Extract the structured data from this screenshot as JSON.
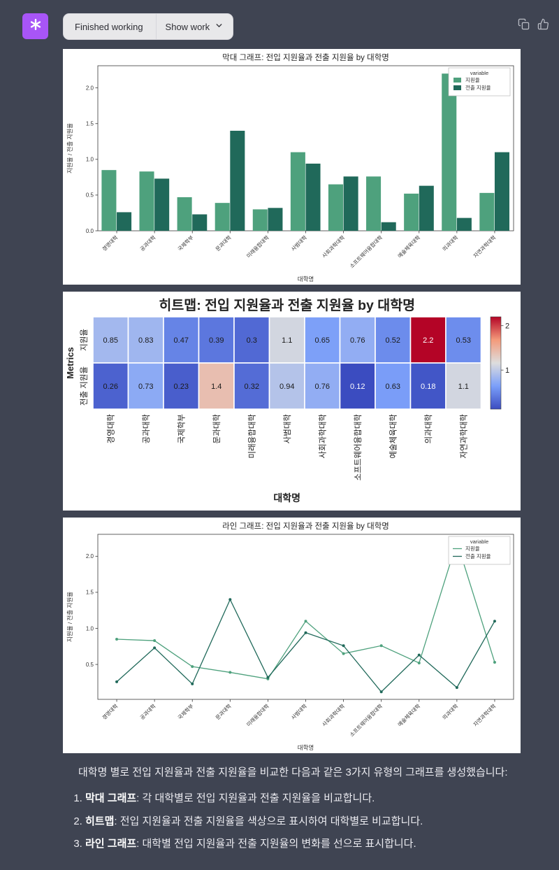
{
  "header": {
    "status_label": "Finished working",
    "show_work_label": "Show work",
    "avatar_color": "#a855f7",
    "icons": [
      "openai-logo-icon",
      "chevron-down-icon",
      "copy-icon",
      "thumbs-up-icon"
    ]
  },
  "page": {
    "background": "#3f4452",
    "panel_background": "#ffffff",
    "text_color": "#ececf1"
  },
  "chart_data": [
    {
      "type": "bar",
      "title": "막대 그래프: 전입 지원율과 전출 지원율 by 대학명",
      "xlabel": "대학명",
      "ylabel": "지원율 / 전출 지원율",
      "legend_title": "variable",
      "legend_position": "top-right",
      "grid": false,
      "ylim": [
        0,
        2.31
      ],
      "yticks": [
        0.0,
        0.5,
        1.0,
        1.5,
        2.0
      ],
      "categories": [
        "경영대학",
        "공과대학",
        "국제학부",
        "문과대학",
        "미래융합대학",
        "사범대학",
        "사회과학대학",
        "소프트웨어융합대학",
        "예술체육대학",
        "의과대학",
        "자연과학대학"
      ],
      "series": [
        {
          "name": "지원율",
          "color": "#4ea17d",
          "values": [
            0.85,
            0.83,
            0.47,
            0.39,
            0.3,
            1.1,
            0.65,
            0.76,
            0.52,
            2.2,
            0.53
          ]
        },
        {
          "name": "전출 지원율",
          "color": "#20695a",
          "values": [
            0.26,
            0.73,
            0.23,
            1.4,
            0.32,
            0.94,
            0.76,
            0.12,
            0.63,
            0.18,
            1.1
          ]
        }
      ]
    },
    {
      "type": "heatmap",
      "title": "히트맵: 전입 지원율과 전출 지원율 by 대학명",
      "xlabel": "대학명",
      "ylabel": "Metrics",
      "categories": [
        "경영대학",
        "공과대학",
        "국제학부",
        "문과대학",
        "미래융합대학",
        "사범대학",
        "사회과학대학",
        "소프트웨어융합대학",
        "예술체육대학",
        "의과대학",
        "자연과학대학"
      ],
      "rows": [
        {
          "name": "지원율",
          "values": [
            0.85,
            0.83,
            0.47,
            0.39,
            0.3,
            1.1,
            0.65,
            0.76,
            0.52,
            2.2,
            0.53
          ],
          "labels": [
            "0.85",
            "0.83",
            "0.47",
            "0.39",
            "0.3",
            "1.1",
            "0.65",
            "0.76",
            "0.52",
            "2.2",
            "0.53"
          ],
          "colors": [
            "#a3b8ee",
            "#9fb6ef",
            "#6684e6",
            "#5c77de",
            "#5169d4",
            "#d2d6e0",
            "#7da0f8",
            "#92adf3",
            "#6c8cec",
            "#b40426",
            "#6d8ded"
          ]
        },
        {
          "name": "전출 지원율",
          "values": [
            0.26,
            0.73,
            0.23,
            1.4,
            0.32,
            0.94,
            0.76,
            0.12,
            0.63,
            0.18,
            1.1
          ],
          "labels": [
            "0.26",
            "0.73",
            "0.23",
            "1.4",
            "0.32",
            "0.94",
            "0.76",
            "0.12",
            "0.63",
            "0.18",
            "1.1"
          ],
          "colors": [
            "#4c62cf",
            "#8caaf4",
            "#495ecc",
            "#e8beb0",
            "#546cd6",
            "#b4c3e9",
            "#92adf3",
            "#3b4cc0",
            "#7a9df8",
            "#4256c7",
            "#d2d6e0"
          ]
        }
      ],
      "colorbar": {
        "vmin": 0.12,
        "vmax": 2.2,
        "ticks": [
          2,
          1
        ],
        "gradient": [
          "#3b4cc0",
          "#7b9ff9",
          "#dddddd",
          "#f49a7b",
          "#b40426"
        ]
      }
    },
    {
      "type": "line",
      "title": "라인 그래프: 전입 지원율과 전출 지원율 by 대학명",
      "xlabel": "대학명",
      "ylabel": "지원율 / 전출 지원율",
      "legend_title": "variable",
      "legend_position": "top-right",
      "grid": false,
      "ylim": [
        0.016,
        2.304
      ],
      "yticks": [
        0.5,
        1.0,
        1.5,
        2.0
      ],
      "categories": [
        "경영대학",
        "공과대학",
        "국제학부",
        "문과대학",
        "미래융합대학",
        "사범대학",
        "사회과학대학",
        "소프트웨어융합대학",
        "예술체육대학",
        "의과대학",
        "자연과학대학"
      ],
      "series": [
        {
          "name": "지원율",
          "color": "#4ea17d",
          "values": [
            0.85,
            0.83,
            0.47,
            0.39,
            0.3,
            1.1,
            0.65,
            0.76,
            0.52,
            2.2,
            0.53
          ]
        },
        {
          "name": "전출 지원율",
          "color": "#20695a",
          "values": [
            0.26,
            0.73,
            0.23,
            1.4,
            0.32,
            0.94,
            0.76,
            0.12,
            0.63,
            0.18,
            1.1
          ]
        }
      ]
    }
  ],
  "message": {
    "intro": "대학명 별로 전입 지원율과 전출 지원율을 비교한 다음과 같은 3가지 유형의 그래프를 생성했습니다:",
    "items": [
      {
        "term": "막대 그래프",
        "desc": ": 각 대학별로 전입 지원율과 전출 지원율을 비교합니다."
      },
      {
        "term": "히트맵",
        "desc": ": 전입 지원율과 전출 지원율을 색상으로 표시하여 대학별로 비교합니다."
      },
      {
        "term": "라인 그래프",
        "desc": ": 대학별 전입 지원율과 전출 지원율의 변화를 선으로 표시합니다."
      }
    ]
  }
}
